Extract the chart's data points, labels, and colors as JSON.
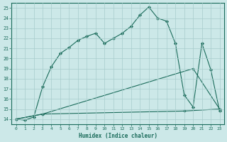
{
  "xlabel": "Humidex (Indice chaleur)",
  "bg_color": "#cce8e8",
  "grid_color": "#a8cccc",
  "line_color": "#1a6b5a",
  "xlim": [
    -0.5,
    23.5
  ],
  "ylim": [
    13.5,
    25.5
  ],
  "xticks": [
    0,
    1,
    2,
    3,
    4,
    5,
    6,
    7,
    8,
    9,
    10,
    11,
    12,
    13,
    14,
    15,
    16,
    17,
    18,
    19,
    20,
    21,
    22,
    23
  ],
  "yticks": [
    14,
    15,
    16,
    17,
    18,
    19,
    20,
    21,
    22,
    23,
    24,
    25
  ],
  "main_x": [
    0,
    1,
    2,
    3,
    4,
    5,
    6,
    7,
    8,
    9,
    10,
    11,
    12,
    13,
    14,
    15,
    16,
    17,
    18,
    19,
    20,
    21,
    22,
    23
  ],
  "main_y": [
    14,
    13.9,
    14.2,
    17.2,
    19.2,
    20.5,
    21.1,
    21.8,
    22.2,
    22.5,
    21.5,
    22.0,
    22.5,
    23.2,
    24.3,
    25.1,
    24.0,
    23.7,
    21.5,
    16.4,
    15.2,
    21.5,
    18.9,
    14.8
  ],
  "line2_x": [
    0,
    3,
    20,
    23
  ],
  "line2_y": [
    14,
    14.5,
    19.0,
    15.0
  ],
  "line3_x": [
    0,
    3,
    19,
    23
  ],
  "line3_y": [
    14,
    14.5,
    14.8,
    15.0
  ]
}
